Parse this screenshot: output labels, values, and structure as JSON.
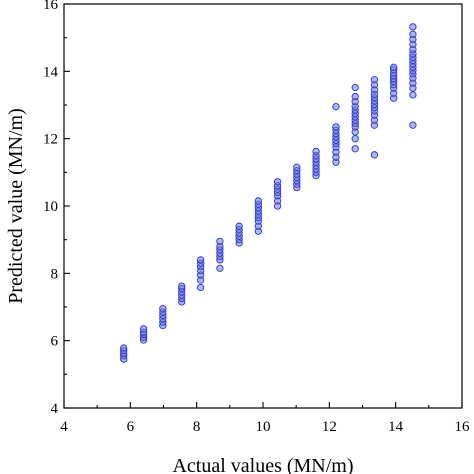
{
  "chart_data": {
    "type": "scatter",
    "title": "",
    "xlabel": "Actual values (MN/m)",
    "ylabel": "Predicted value (MN/m)",
    "xlim": [
      4,
      16
    ],
    "ylim": [
      4,
      16
    ],
    "x_ticks": [
      4,
      6,
      8,
      10,
      12,
      14,
      16
    ],
    "y_ticks": [
      4,
      6,
      8,
      10,
      12,
      14,
      16
    ],
    "x_tick_labels": [
      "4",
      "6",
      "8",
      "10",
      "12",
      "14",
      "16"
    ],
    "y_tick_labels": [
      "4",
      "6",
      "8",
      "10",
      "12",
      "14",
      "16"
    ],
    "grid": false,
    "legend": "none",
    "marker_fill": "#6f78ee",
    "marker_edge": "#2a37c8",
    "series": [
      {
        "points": [
          [
            5.8,
            5.45
          ],
          [
            5.8,
            5.55
          ],
          [
            5.8,
            5.62
          ],
          [
            5.8,
            5.7
          ],
          [
            5.8,
            5.78
          ],
          [
            6.4,
            6.02
          ],
          [
            6.4,
            6.1
          ],
          [
            6.4,
            6.18
          ],
          [
            6.4,
            6.25
          ],
          [
            6.4,
            6.35
          ],
          [
            6.98,
            6.45
          ],
          [
            6.98,
            6.55
          ],
          [
            6.98,
            6.65
          ],
          [
            6.98,
            6.75
          ],
          [
            6.98,
            6.85
          ],
          [
            6.98,
            6.95
          ],
          [
            7.55,
            7.15
          ],
          [
            7.55,
            7.25
          ],
          [
            7.55,
            7.35
          ],
          [
            7.55,
            7.45
          ],
          [
            7.55,
            7.55
          ],
          [
            7.55,
            7.62
          ],
          [
            8.12,
            7.58
          ],
          [
            8.12,
            7.8
          ],
          [
            8.12,
            7.95
          ],
          [
            8.12,
            8.08
          ],
          [
            8.12,
            8.2
          ],
          [
            8.12,
            8.3
          ],
          [
            8.12,
            8.4
          ],
          [
            8.7,
            8.15
          ],
          [
            8.7,
            8.4
          ],
          [
            8.7,
            8.5
          ],
          [
            8.7,
            8.6
          ],
          [
            8.7,
            8.7
          ],
          [
            8.7,
            8.8
          ],
          [
            8.7,
            8.95
          ],
          [
            9.28,
            8.9
          ],
          [
            9.28,
            9.0
          ],
          [
            9.28,
            9.1
          ],
          [
            9.28,
            9.2
          ],
          [
            9.28,
            9.3
          ],
          [
            9.28,
            9.4
          ],
          [
            9.86,
            9.25
          ],
          [
            9.86,
            9.4
          ],
          [
            9.86,
            9.55
          ],
          [
            9.86,
            9.65
          ],
          [
            9.86,
            9.75
          ],
          [
            9.86,
            9.85
          ],
          [
            9.86,
            9.95
          ],
          [
            9.86,
            10.05
          ],
          [
            9.86,
            10.15
          ],
          [
            10.44,
            10.0
          ],
          [
            10.44,
            10.15
          ],
          [
            10.44,
            10.3
          ],
          [
            10.44,
            10.4
          ],
          [
            10.44,
            10.5
          ],
          [
            10.44,
            10.6
          ],
          [
            10.44,
            10.72
          ],
          [
            11.02,
            10.55
          ],
          [
            11.02,
            10.65
          ],
          [
            11.02,
            10.75
          ],
          [
            11.02,
            10.85
          ],
          [
            11.02,
            10.95
          ],
          [
            11.02,
            11.05
          ],
          [
            11.02,
            11.15
          ],
          [
            11.6,
            10.9
          ],
          [
            11.6,
            11.0
          ],
          [
            11.6,
            11.1
          ],
          [
            11.6,
            11.2
          ],
          [
            11.6,
            11.3
          ],
          [
            11.6,
            11.4
          ],
          [
            11.6,
            11.5
          ],
          [
            11.6,
            11.62
          ],
          [
            12.2,
            11.3
          ],
          [
            12.2,
            11.45
          ],
          [
            12.2,
            11.6
          ],
          [
            12.2,
            11.75
          ],
          [
            12.2,
            11.85
          ],
          [
            12.2,
            11.95
          ],
          [
            12.2,
            12.05
          ],
          [
            12.2,
            12.15
          ],
          [
            12.2,
            12.25
          ],
          [
            12.2,
            12.35
          ],
          [
            12.2,
            12.95
          ],
          [
            12.78,
            11.7
          ],
          [
            12.78,
            12.0
          ],
          [
            12.78,
            12.2
          ],
          [
            12.78,
            12.35
          ],
          [
            12.78,
            12.45
          ],
          [
            12.78,
            12.55
          ],
          [
            12.78,
            12.65
          ],
          [
            12.78,
            12.75
          ],
          [
            12.78,
            12.85
          ],
          [
            12.78,
            12.95
          ],
          [
            12.78,
            13.1
          ],
          [
            12.78,
            13.25
          ],
          [
            12.78,
            13.52
          ],
          [
            13.36,
            11.52
          ],
          [
            13.36,
            12.4
          ],
          [
            13.36,
            12.55
          ],
          [
            13.36,
            12.7
          ],
          [
            13.36,
            12.82
          ],
          [
            13.36,
            12.92
          ],
          [
            13.36,
            13.02
          ],
          [
            13.36,
            13.12
          ],
          [
            13.36,
            13.22
          ],
          [
            13.36,
            13.32
          ],
          [
            13.36,
            13.45
          ],
          [
            13.36,
            13.6
          ],
          [
            13.36,
            13.75
          ],
          [
            13.94,
            13.2
          ],
          [
            13.94,
            13.35
          ],
          [
            13.94,
            13.5
          ],
          [
            13.94,
            13.6
          ],
          [
            13.94,
            13.7
          ],
          [
            13.94,
            13.78
          ],
          [
            13.94,
            13.86
          ],
          [
            13.94,
            13.95
          ],
          [
            13.94,
            14.05
          ],
          [
            13.94,
            14.12
          ],
          [
            14.52,
            12.4
          ],
          [
            14.52,
            13.3
          ],
          [
            14.52,
            13.5
          ],
          [
            14.52,
            13.65
          ],
          [
            14.52,
            13.8
          ],
          [
            14.52,
            13.92
          ],
          [
            14.52,
            14.02
          ],
          [
            14.52,
            14.12
          ],
          [
            14.52,
            14.22
          ],
          [
            14.52,
            14.32
          ],
          [
            14.52,
            14.42
          ],
          [
            14.52,
            14.52
          ],
          [
            14.52,
            14.65
          ],
          [
            14.52,
            14.8
          ],
          [
            14.52,
            14.95
          ],
          [
            14.52,
            15.1
          ],
          [
            14.52,
            15.32
          ]
        ]
      }
    ]
  }
}
